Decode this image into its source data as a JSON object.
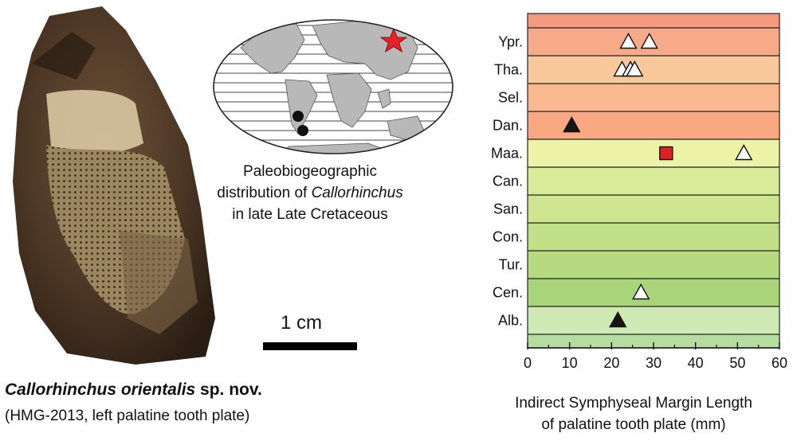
{
  "specimen": {
    "name_italic": "Callorhinchus orientalis",
    "name_suffix": " sp. nov.",
    "details": "(HMG-2013, left palatine tooth plate)",
    "scale_label": "1 cm"
  },
  "map": {
    "caption_line1": "Paleobiogeographic",
    "caption_line2a": "distribution of ",
    "caption_line2b": "Callorhinchus",
    "caption_line3": "in late Late Cretaceous",
    "marker_colors": {
      "star": "#e8202a",
      "dot": "#111111"
    }
  },
  "chart_data": {
    "type": "scatter",
    "xlabel_line1": "Indirect Symphyseal Margin Length",
    "xlabel_line2": "of palatine tooth plate (mm)",
    "xlim": [
      0,
      60
    ],
    "xticks": [
      0,
      10,
      20,
      30,
      40,
      50,
      60
    ],
    "grid": "horizontal band lines",
    "stages": [
      {
        "label": "",
        "color": "#f59a7e"
      },
      {
        "label": "Ypr.",
        "color": "#f7aa8a"
      },
      {
        "label": "Tha.",
        "color": "#f9c89a"
      },
      {
        "label": "Sel.",
        "color": "#fab88e"
      },
      {
        "label": "Dan.",
        "color": "#f9a882"
      },
      {
        "label": "Maa.",
        "color": "#ecf2a6"
      },
      {
        "label": "Can.",
        "color": "#d9ea98"
      },
      {
        "label": "San.",
        "color": "#cde58f"
      },
      {
        "label": "Con.",
        "color": "#c2e088"
      },
      {
        "label": "Tur.",
        "color": "#b5da80"
      },
      {
        "label": "Cen.",
        "color": "#a9d47a"
      },
      {
        "label": "Alb.",
        "color": "#cfe9b4"
      },
      {
        "label": "",
        "color": "#b6dca0"
      }
    ],
    "points": [
      {
        "stage": "Ypr.",
        "x": 24,
        "marker": "triangle-open"
      },
      {
        "stage": "Ypr.",
        "x": 29,
        "marker": "triangle-open"
      },
      {
        "stage": "Tha.",
        "x": 22.5,
        "marker": "triangle-open"
      },
      {
        "stage": "Tha.",
        "x": 24.5,
        "marker": "triangle-open"
      },
      {
        "stage": "Tha.",
        "x": 25.5,
        "marker": "triangle-open"
      },
      {
        "stage": "Dan.",
        "x": 10.5,
        "marker": "triangle-filled"
      },
      {
        "stage": "Maa.",
        "x": 33,
        "marker": "square-red"
      },
      {
        "stage": "Maa.",
        "x": 51.5,
        "marker": "triangle-open"
      },
      {
        "stage": "Cen.",
        "x": 27,
        "marker": "triangle-open"
      },
      {
        "stage": "Alb.",
        "x": 21.5,
        "marker": "triangle-filled"
      }
    ],
    "marker_colors": {
      "open_fill": "#ffffff",
      "filled": "#1a1414",
      "red": "#e02027"
    }
  }
}
